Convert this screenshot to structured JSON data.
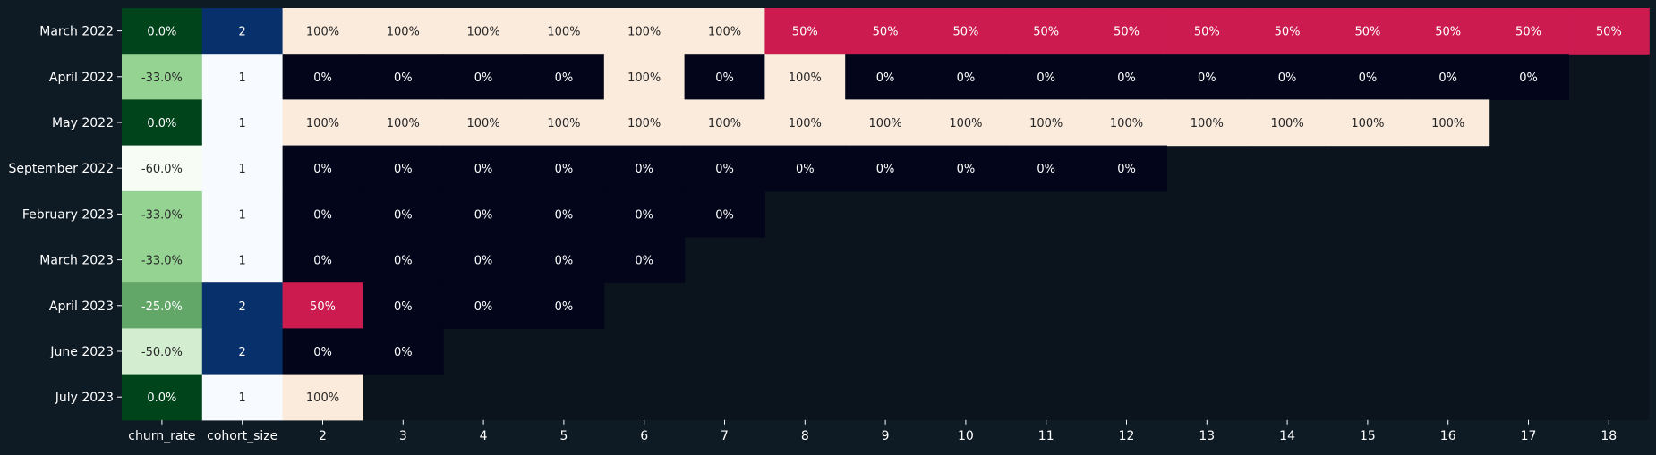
{
  "chart_data": {
    "type": "heatmap",
    "title": "",
    "xlabel": "",
    "ylabel": "",
    "rows": [
      "March 2022",
      "April 2022",
      "May 2022",
      "September 2022",
      "February 2023",
      "March 2023",
      "April 2023",
      "June 2023",
      "July 2023"
    ],
    "columns": [
      "churn_rate",
      "cohort_size",
      "2",
      "3",
      "4",
      "5",
      "6",
      "7",
      "8",
      "9",
      "10",
      "11",
      "12",
      "13",
      "14",
      "15",
      "16",
      "17",
      "18"
    ],
    "churn_rate": [
      0.0,
      -33.0,
      0.0,
      -60.0,
      -33.0,
      -33.0,
      -25.0,
      -50.0,
      0.0
    ],
    "churn_rate_labels": [
      "0.0%",
      "-33.0%",
      "0.0%",
      "-60.0%",
      "-33.0%",
      "-33.0%",
      "-25.0%",
      "-50.0%",
      "0.0%"
    ],
    "cohort_size": [
      2,
      1,
      1,
      1,
      1,
      1,
      2,
      2,
      1
    ],
    "retention": [
      [
        100,
        100,
        100,
        100,
        100,
        100,
        50,
        50,
        50,
        50,
        50,
        50,
        50,
        50,
        50,
        50,
        50
      ],
      [
        0,
        0,
        0,
        0,
        100,
        0,
        100,
        0,
        0,
        0,
        0,
        0,
        0,
        0,
        0,
        0
      ],
      [
        100,
        100,
        100,
        100,
        100,
        100,
        100,
        100,
        100,
        100,
        100,
        100,
        100,
        100,
        100
      ],
      [
        0,
        0,
        0,
        0,
        0,
        0,
        0,
        0,
        0,
        0,
        0
      ],
      [
        0,
        0,
        0,
        0,
        0,
        0
      ],
      [
        0,
        0,
        0,
        0,
        0
      ],
      [
        50,
        0,
        0,
        0
      ],
      [
        0,
        0
      ],
      [
        100
      ]
    ],
    "colors": {
      "background": "#0e1a24",
      "empty": "#0b141d",
      "axis_text": "#ffffff",
      "retention_zero": "#03051a",
      "retention_half": "#cb1b4f",
      "retention_full": "#faebdd",
      "churn_high": "#00441b",
      "churn_mid": "#8ace88",
      "churn_low": "#f7fcf5",
      "size_one": "#f7fbff",
      "size_two": "#08306b"
    }
  }
}
